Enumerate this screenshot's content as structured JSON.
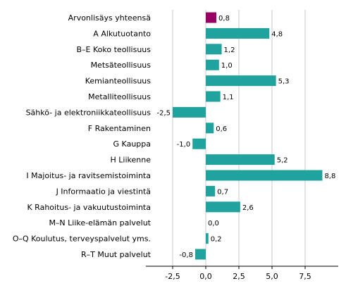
{
  "chart_data": {
    "type": "bar",
    "orientation": "horizontal",
    "categories": [
      "Arvonlisäys yhteensä",
      "A Alkutuotanto",
      "B–E Koko teollisuus",
      "Metsäteollisuus",
      "Kemianteollisuus",
      "Metalliteollisuus",
      "Sähkö- ja elektroniikkateollisuus",
      "F Rakentaminen",
      "G Kauppa",
      "H Liikenne",
      "I Majoitus- ja ravitsemistoiminta",
      "J Informaatio ja viestintä",
      "K Rahoitus- ja vakuutustoiminta",
      "M–N Liike-elämän palvelut",
      "O–Q Koulutus, terveyspalvelut yms.",
      "R–T Muut palvelut"
    ],
    "values": [
      0.8,
      4.8,
      1.2,
      1.0,
      5.3,
      1.1,
      -2.5,
      0.6,
      -1.0,
      5.2,
      8.8,
      0.7,
      2.6,
      0.0,
      0.2,
      -0.8
    ],
    "value_labels": [
      "0,8",
      "4,8",
      "1,2",
      "1,0",
      "5,3",
      "1,1",
      "-2,5",
      "0,6",
      "-1,0",
      "5,2",
      "8,8",
      "0,7",
      "2,6",
      "0,0",
      "0,2",
      "-0,8"
    ],
    "colors": [
      "#990066",
      "#20a39e",
      "#20a39e",
      "#20a39e",
      "#20a39e",
      "#20a39e",
      "#20a39e",
      "#20a39e",
      "#20a39e",
      "#20a39e",
      "#20a39e",
      "#20a39e",
      "#20a39e",
      "#20a39e",
      "#20a39e",
      "#20a39e"
    ],
    "xticks": [
      -2.5,
      0.0,
      2.5,
      5.0,
      7.5
    ],
    "xtick_labels": [
      "-2,5",
      "0,0",
      "2,5",
      "5,0",
      "7,5"
    ],
    "xlim": [
      -4.5,
      10.2
    ],
    "grid": true,
    "title": "",
    "xlabel": "",
    "ylabel": ""
  }
}
